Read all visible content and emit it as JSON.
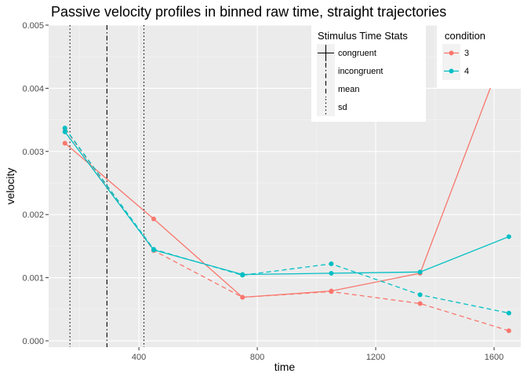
{
  "chart_data": {
    "type": "line",
    "title": "Passive velocity profiles in binned raw time, straight trajectories",
    "xlabel": "time",
    "ylabel": "velocity",
    "xlim": [
      95,
      1690
    ],
    "ylim": [
      -0.0001,
      0.005
    ],
    "x_ticks": [
      400,
      800,
      1200,
      1600
    ],
    "x_tick_labels": [
      "400",
      "800",
      "1200",
      "1600"
    ],
    "y_ticks": [
      0,
      0.001,
      0.002,
      0.003,
      0.004,
      0.005
    ],
    "y_tick_labels": [
      "0.000",
      "0.001",
      "0.002",
      "0.003",
      "0.004",
      "0.005"
    ],
    "grid": true,
    "x": [
      150,
      450,
      750,
      1050,
      1350,
      1650
    ],
    "series": [
      {
        "condition": "3",
        "stat": "congruent",
        "line": "solid",
        "color": "#F8766D",
        "values": [
          0.00313,
          0.00193,
          0.00069,
          0.00079,
          0.00107,
          0.00478
        ]
      },
      {
        "condition": "3",
        "stat": "incongruent",
        "line": "dashed",
        "color": "#F8766D",
        "values": [
          0.00336,
          0.00143,
          0.00069,
          0.00078,
          0.00059,
          0.00016
        ]
      },
      {
        "condition": "4",
        "stat": "congruent",
        "line": "solid",
        "color": "#00BFC4",
        "values": [
          0.00331,
          0.00144,
          0.00105,
          0.00107,
          0.00109,
          0.00165
        ]
      },
      {
        "condition": "4",
        "stat": "incongruent",
        "line": "dashed",
        "color": "#00BFC4",
        "values": [
          0.00337,
          0.00145,
          0.00104,
          0.00122,
          0.00073,
          0.00044
        ]
      }
    ],
    "vlines": [
      {
        "x": 167,
        "style": "dotted"
      },
      {
        "x": 292,
        "style": "dashdot"
      },
      {
        "x": 417,
        "style": "dotted"
      }
    ],
    "legend_stats": {
      "title": "Stimulus Time Stats",
      "entries": [
        {
          "label": "congruent",
          "dash": "solid"
        },
        {
          "label": "incongruent",
          "dash": "dashdot"
        },
        {
          "label": "mean",
          "dash": "dashed"
        },
        {
          "label": "sd",
          "dash": "dotted"
        }
      ]
    },
    "legend_condition": {
      "title": "condition",
      "entries": [
        {
          "label": "3",
          "color": "#F8766D"
        },
        {
          "label": "4",
          "color": "#00BFC4"
        }
      ]
    }
  }
}
